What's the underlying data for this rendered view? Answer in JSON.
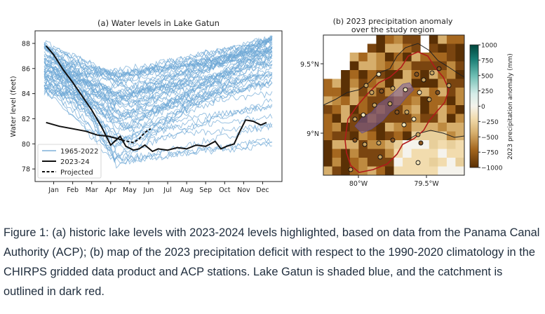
{
  "panel_a": {
    "title": "(a) Water levels in Lake Gatun",
    "ylabel": "Water level (feet)",
    "legend": [
      "1965-2022",
      "2023-24",
      "Projected"
    ]
  },
  "panel_b": {
    "title_line1": "(b) 2023 precipitation anomaly",
    "title_line2": "over the study region",
    "colorbar_label": "2023 precipitation anomaly (mm)"
  },
  "caption": "Figure 1: (a) historic lake levels with 2023-2024 levels highlighted, based on data from the Panama Canal Authority (ACP); (b) map of the 2023 precipitation deficit with respect to the 1990-2020 climatology in the CHIRPS gridded data product and ACP stations. Lake Gatun is shaded blue, and the catchment is outlined in dark red.",
  "chart_data": [
    {
      "type": "line",
      "title": "(a) Water levels in Lake Gatun",
      "xlabel": "",
      "ylabel": "Water level (feet)",
      "x_ticks": [
        "Jan",
        "Feb",
        "Mar",
        "Apr",
        "May",
        "Jun",
        "Jul",
        "Aug",
        "Sep",
        "Oct",
        "Nov",
        "Dec"
      ],
      "xlim": [
        0,
        12
      ],
      "ylim": [
        77,
        89
      ],
      "y_ticks": [
        78,
        80,
        82,
        84,
        86,
        88
      ],
      "legend_position": "lower-left",
      "series": [
        {
          "name": "2023-24",
          "x": [
            0.1,
            0.5,
            1.0,
            1.5,
            2.0,
            2.5,
            3.0,
            3.5,
            4.0,
            4.3,
            4.7,
            5.0,
            5.3,
            5.7,
            6.0,
            6.5,
            7.0,
            7.5,
            8.0,
            8.5,
            9.0,
            9.3,
            9.6,
            10.0,
            10.3,
            10.6,
            11.0,
            11.4,
            11.7
          ],
          "values": [
            87.8,
            87.1,
            85.9,
            84.9,
            83.8,
            82.7,
            81.4,
            79.9,
            80.6,
            79.8,
            79.5,
            79.6,
            79.9,
            79.4,
            79.6,
            79.5,
            79.7,
            79.6,
            79.9,
            79.8,
            80.2,
            79.6,
            79.8,
            80.0,
            81.0,
            81.9,
            81.8,
            81.5,
            81.7
          ]
        },
        {
          "name": "Projected",
          "x": [
            4.1,
            4.4,
            4.7,
            5.0,
            5.3,
            5.6
          ],
          "values": [
            80.3,
            80.2,
            80.1,
            80.4,
            80.9,
            81.2
          ]
        },
        {
          "name": "2023-24 (early segment)",
          "x": [
            0.1,
            0.8,
            1.5,
            2.2,
            2.8,
            3.4,
            3.9,
            4.1
          ],
          "values": [
            81.7,
            81.4,
            81.2,
            81.0,
            80.7,
            80.6,
            80.4,
            80.3
          ]
        }
      ],
      "historical_ensemble": {
        "name": "1965-2022",
        "description": "about 58 annual traces ranging 78-88.5 ft"
      }
    },
    {
      "type": "heatmap",
      "title": "(b) 2023 precipitation anomaly over the study region",
      "colorbar_label": "2023 precipitation anomaly (mm)",
      "colorbar_ticks": [
        1000,
        750,
        500,
        250,
        0,
        -250,
        -500,
        -750,
        -1000
      ],
      "colorbar_range": [
        -1000,
        1000
      ],
      "x_ticks": [
        "80°W",
        "79.5°W"
      ],
      "y_ticks": [
        "9.5°N",
        "9°N"
      ]
    }
  ]
}
